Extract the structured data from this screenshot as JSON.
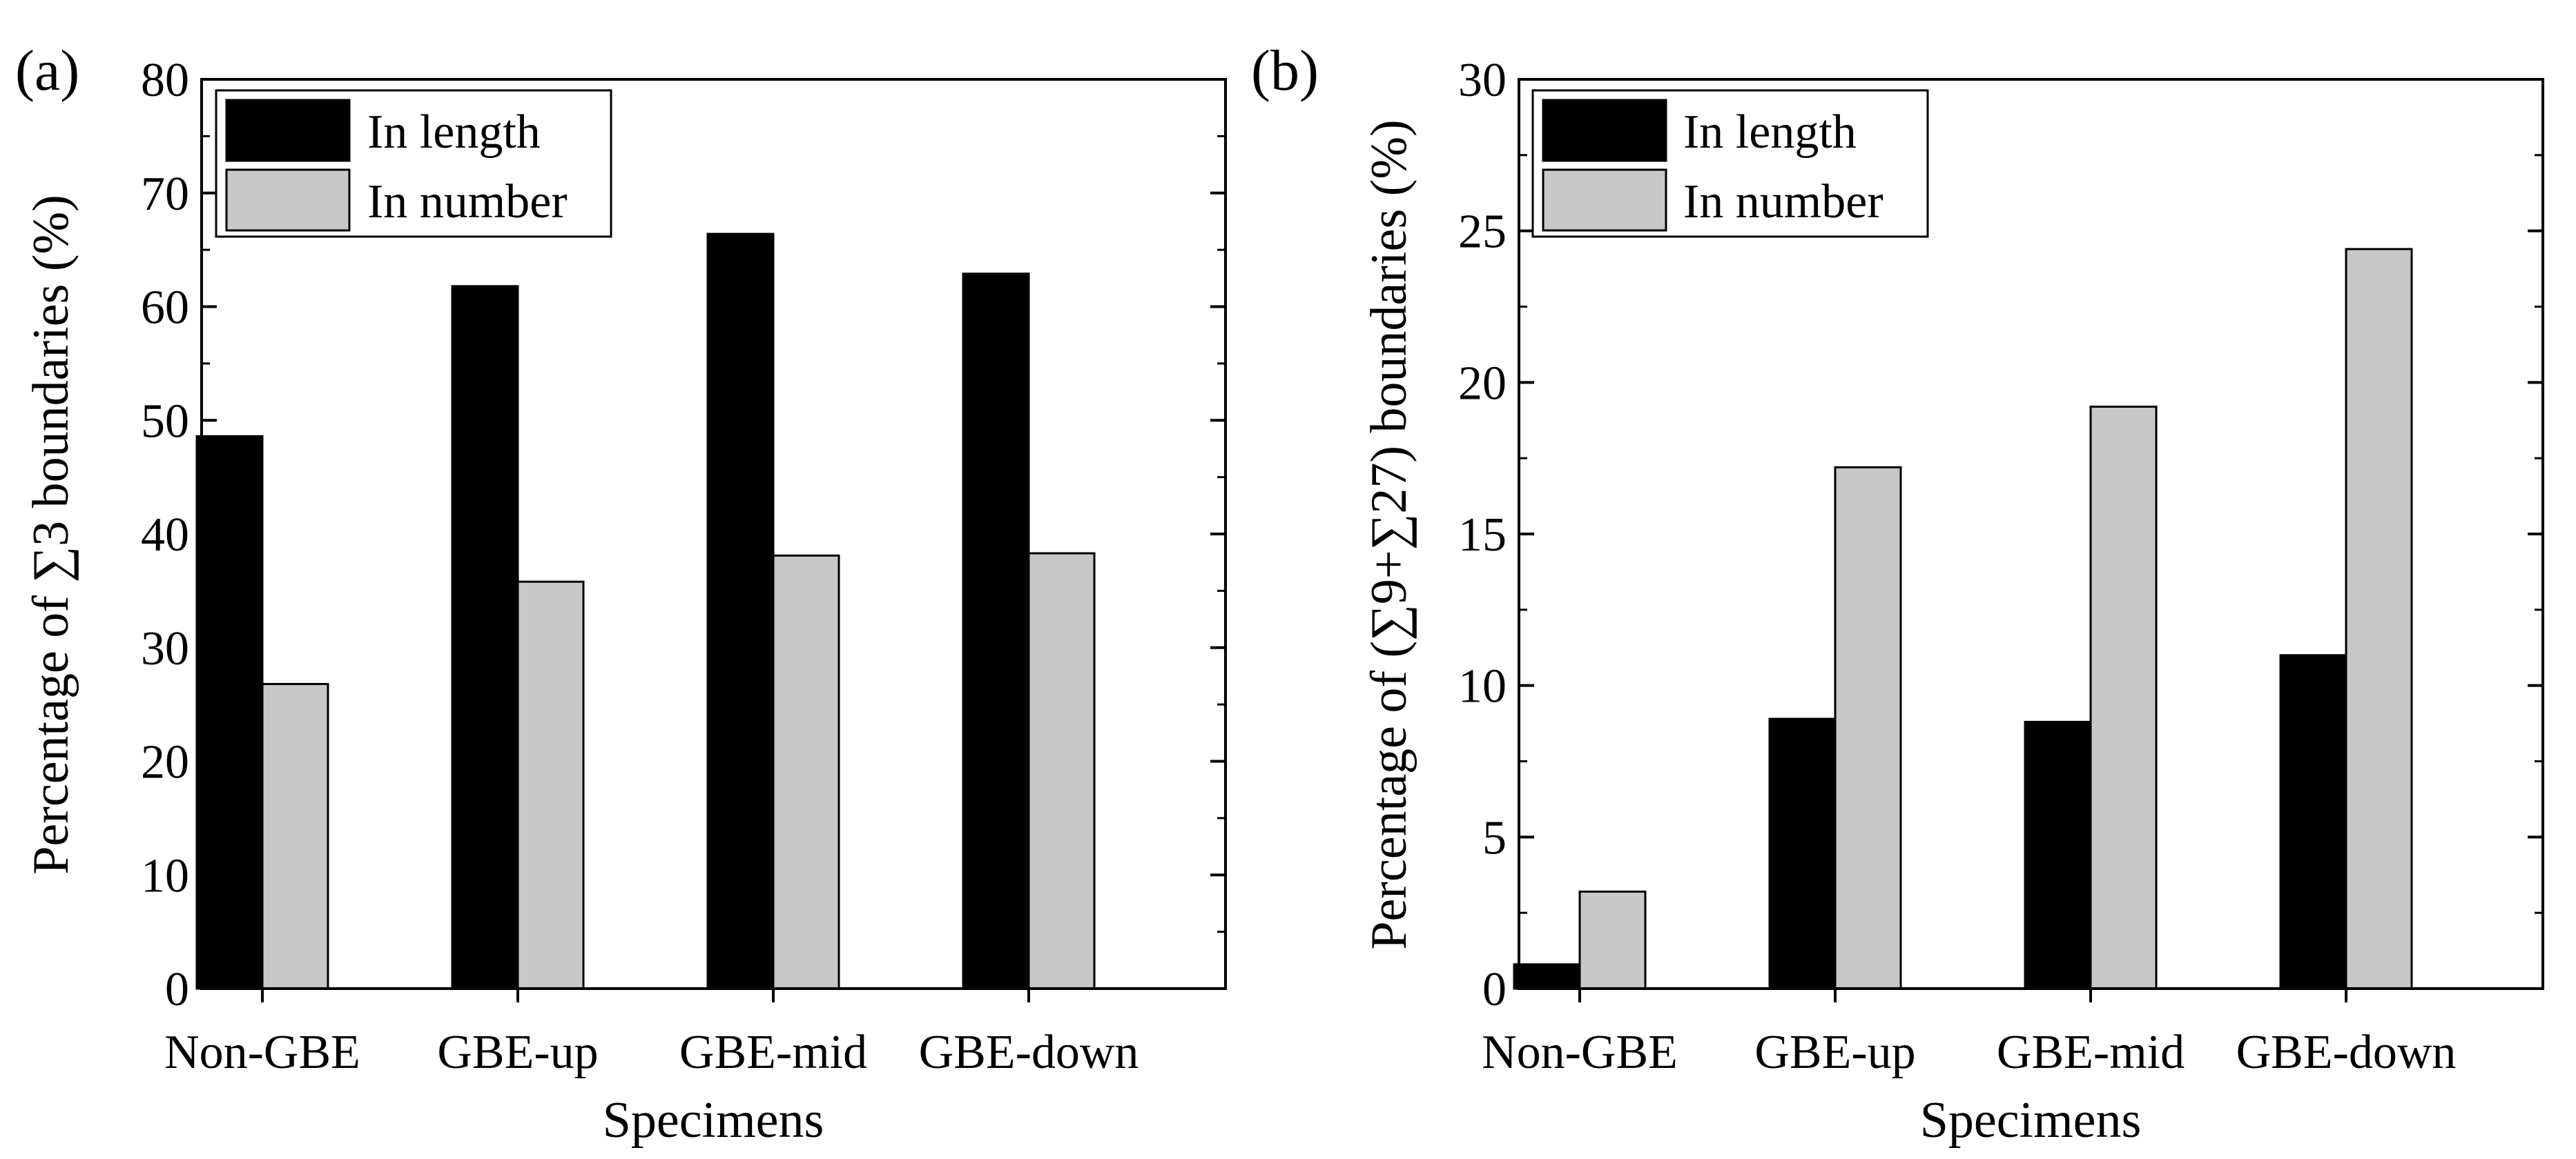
{
  "chart_data": [
    {
      "panel_label": "(a)",
      "type": "bar",
      "categories": [
        "Non-GBE",
        "GBE-up",
        "GBE-mid",
        "GBE-down"
      ],
      "series": [
        {
          "name": "In length",
          "values": [
            48.6,
            61.8,
            66.4,
            62.9
          ]
        },
        {
          "name": "In number",
          "values": [
            26.8,
            35.8,
            38.1,
            38.3
          ]
        }
      ],
      "xlabel": "Specimens",
      "ylabel": "Percentage of ∑3 boundaries (%)",
      "ylim": [
        0,
        80
      ],
      "yticks": [
        0,
        10,
        20,
        30,
        40,
        50,
        60,
        70,
        80
      ],
      "legend_position": "top-left",
      "grid": false
    },
    {
      "panel_label": "(b)",
      "type": "bar",
      "categories": [
        "Non-GBE",
        "GBE-up",
        "GBE-mid",
        "GBE-down"
      ],
      "series": [
        {
          "name": "In length",
          "values": [
            0.8,
            8.9,
            8.8,
            11.0
          ]
        },
        {
          "name": "In number",
          "values": [
            3.2,
            17.2,
            19.2,
            24.4
          ]
        }
      ],
      "xlabel": "Specimens",
      "ylabel": "Percentage of (∑9+∑27) boundaries (%)",
      "ylim": [
        0,
        30
      ],
      "yticks": [
        0,
        5,
        10,
        15,
        20,
        25,
        30
      ],
      "legend_position": "top-left",
      "grid": false
    }
  ],
  "colors": {
    "in_length": "#000000",
    "in_number": "#c8c8c8",
    "outline": "#000000"
  }
}
